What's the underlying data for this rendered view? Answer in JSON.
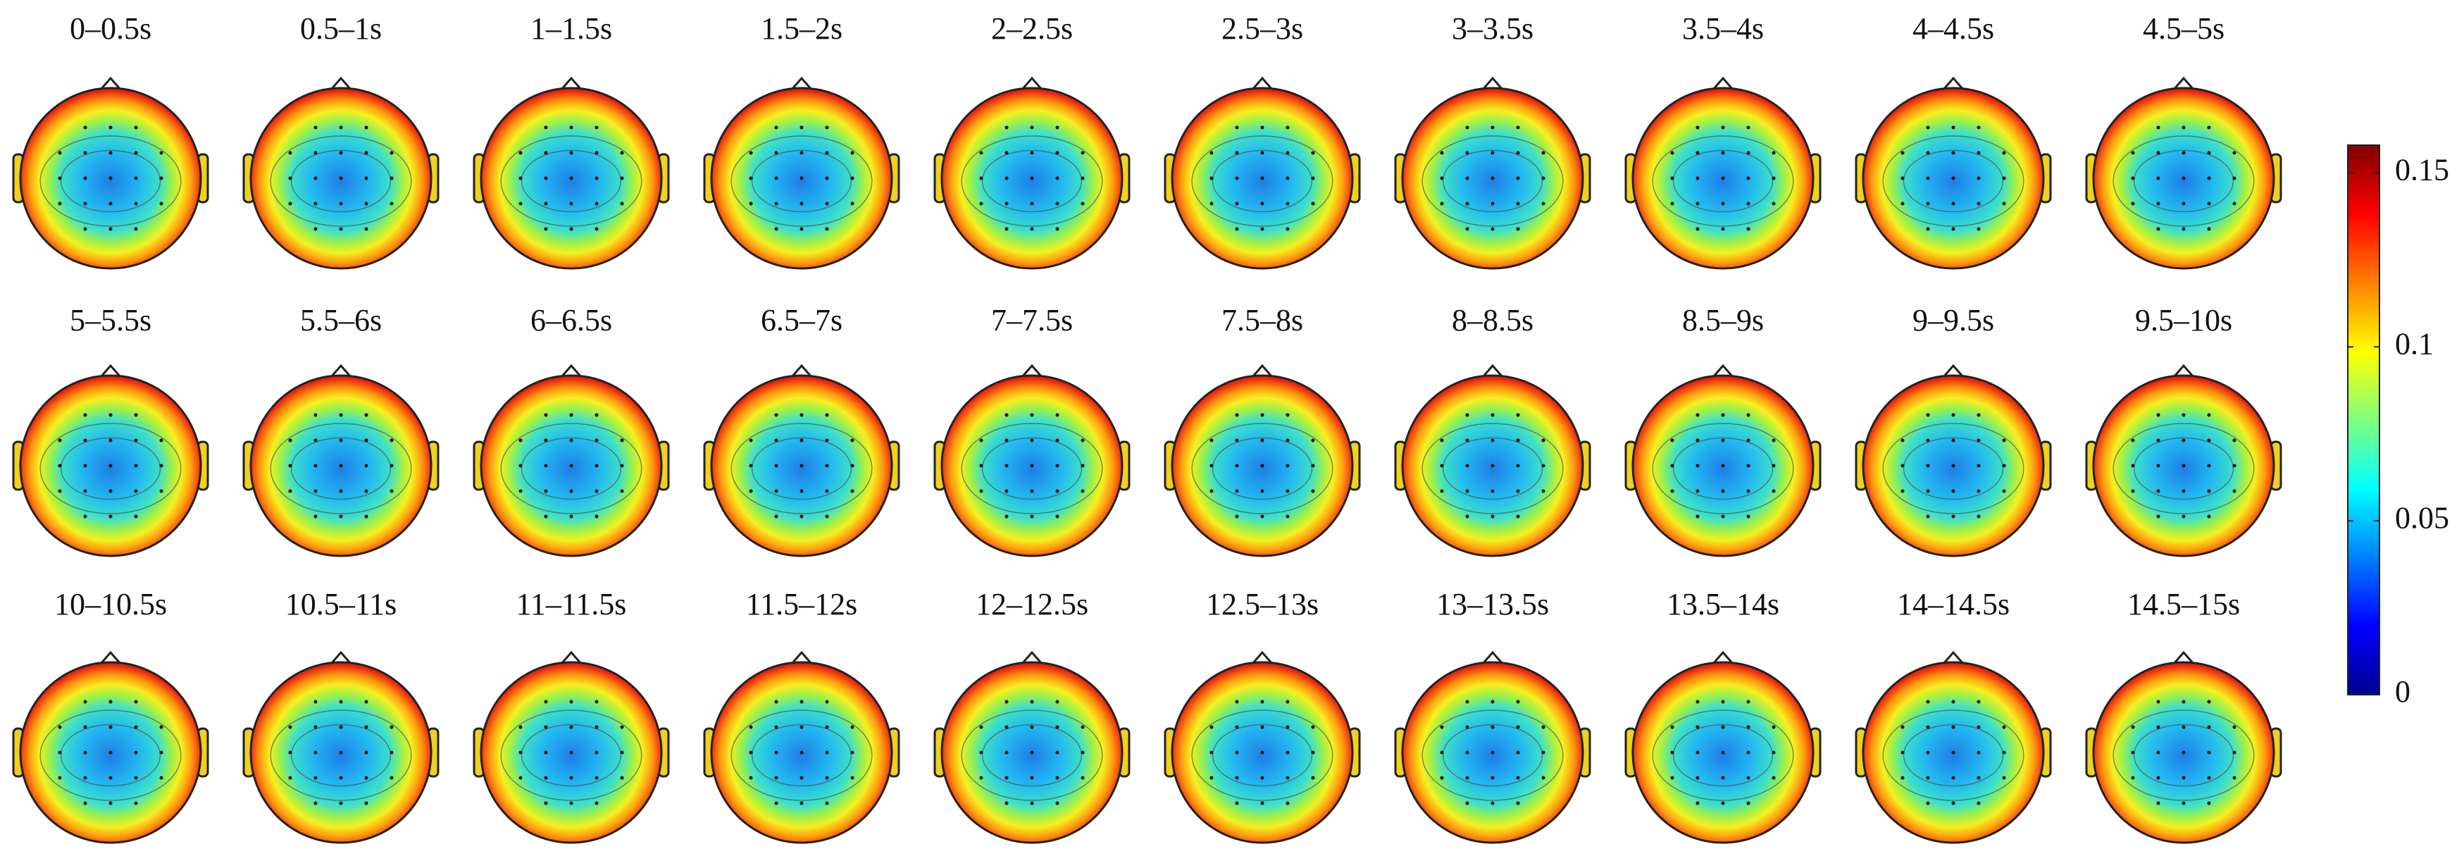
{
  "chart_data": {
    "type": "topomap",
    "categories": [
      "0–0.5s",
      "0.5–1s",
      "1–1.5s",
      "1.5–2s",
      "2–2.5s",
      "2.5–3s",
      "3–3.5s",
      "3.5–4s",
      "4–4.5s",
      "4.5–5s",
      "5–5.5s",
      "5.5–6s",
      "6–6.5s",
      "6.5–7s",
      "7–7.5s",
      "7.5–8s",
      "8–8.5s",
      "8.5–9s",
      "9–9.5s",
      "9.5–10s",
      "10–10.5s",
      "10.5–11s",
      "11–11.5s",
      "11.5–12s",
      "12–12.5s",
      "12.5–13s",
      "13–13.5s",
      "13.5–14s",
      "14–14.5s",
      "14.5–15s"
    ],
    "colormap": "jet",
    "clim": [
      0,
      0.158
    ],
    "cticks": [
      0,
      0.05,
      0.1,
      0.15
    ]
  }
}
